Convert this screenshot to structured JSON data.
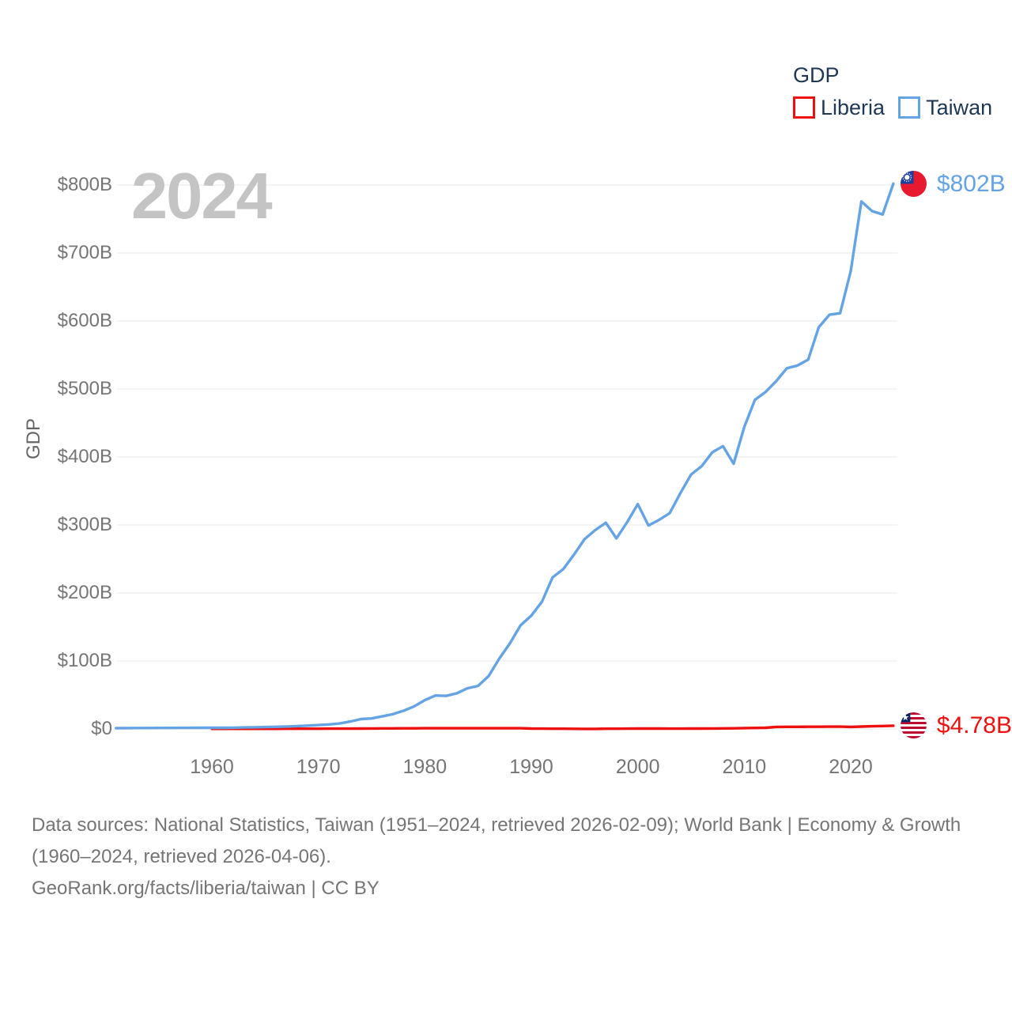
{
  "legend": {
    "title": "GDP",
    "items": [
      {
        "label": "Liberia",
        "color": "#ee0f0f"
      },
      {
        "label": "Taiwan",
        "color": "#64a4e4"
      }
    ]
  },
  "watermark": "2024",
  "y_axis_title": "GDP",
  "annotations": {
    "taiwan_value": "$802B",
    "liberia_value": "$4.78B"
  },
  "footer": {
    "sources": "Data sources: National Statistics, Taiwan (1951–2024, retrieved 2026-02-09); World Bank | Economy & Growth (1960–2024, retrieved 2026-04-06).",
    "attribution": "GeoRank.org/facts/liberia/taiwan | CC BY"
  },
  "chart_data": {
    "type": "line",
    "title": "GDP",
    "ylabel": "GDP",
    "xlabel": "",
    "ylim": [
      0,
      800
    ],
    "xlim": [
      1951,
      2024
    ],
    "grid": true,
    "legend_position": "top-right",
    "y_tick_values": [
      0,
      100,
      200,
      300,
      400,
      500,
      600,
      700,
      800
    ],
    "y_tick_labels": [
      "$0",
      "$100B",
      "$200B",
      "$300B",
      "$400B",
      "$500B",
      "$600B",
      "$700B",
      "$800B"
    ],
    "x_tick_values": [
      1960,
      1970,
      1980,
      1990,
      2000,
      2010,
      2020
    ],
    "x_tick_labels": [
      "1960",
      "1970",
      "1980",
      "1990",
      "2000",
      "2010",
      "2020"
    ],
    "units": "USD billions",
    "series": [
      {
        "name": "Liberia",
        "color": "#ee0f0f",
        "x_start": 1960,
        "values": [
          0.19,
          0.2,
          0.21,
          0.22,
          0.24,
          0.27,
          0.29,
          0.31,
          0.33,
          0.36,
          0.39,
          0.41,
          0.44,
          0.49,
          0.59,
          0.69,
          0.76,
          0.84,
          0.91,
          0.98,
          1.05,
          1.09,
          1.07,
          1.04,
          1.02,
          1.01,
          1.03,
          1.05,
          1.07,
          1.1,
          0.6,
          0.45,
          0.4,
          0.32,
          0.25,
          0.14,
          0.17,
          0.34,
          0.39,
          0.44,
          0.53,
          0.54,
          0.56,
          0.41,
          0.46,
          0.55,
          0.61,
          0.74,
          0.85,
          0.96,
          1.29,
          1.54,
          1.8,
          3.07,
          3.14,
          3.18,
          3.28,
          3.29,
          3.42,
          3.32,
          3.04,
          3.51,
          3.98,
          4.33,
          4.78
        ],
        "end_label": "$4.78B"
      },
      {
        "name": "Taiwan",
        "color": "#64a4e4",
        "x_start": 1951,
        "values": [
          1.2,
          1.3,
          1.4,
          1.4,
          1.5,
          1.5,
          1.6,
          1.6,
          1.7,
          1.7,
          1.8,
          1.9,
          2.2,
          2.5,
          2.8,
          3.1,
          3.6,
          4.2,
          4.9,
          5.7,
          6.6,
          8.0,
          10.9,
          14.5,
          15.5,
          18.5,
          21.7,
          26.8,
          33.2,
          42.3,
          49.2,
          48.6,
          52.4,
          59.8,
          63.4,
          77.9,
          103.6,
          126.2,
          152.6,
          166.6,
          187.2,
          222.9,
          235.1,
          256.2,
          279.1,
          292.5,
          303.3,
          280.2,
          304.1,
          330.7,
          299.3,
          307.4,
          317.4,
          346.9,
          374.1,
          386.5,
          406.9,
          415.9,
          390.1,
          444.2,
          483.9,
          495.6,
          511.6,
          530.5,
          534.5,
          543.1,
          590.8,
          609.2,
          611.4,
          673.2,
          775.8,
          761.6,
          756.6,
          802.0
        ],
        "end_label": "$802B"
      }
    ]
  }
}
